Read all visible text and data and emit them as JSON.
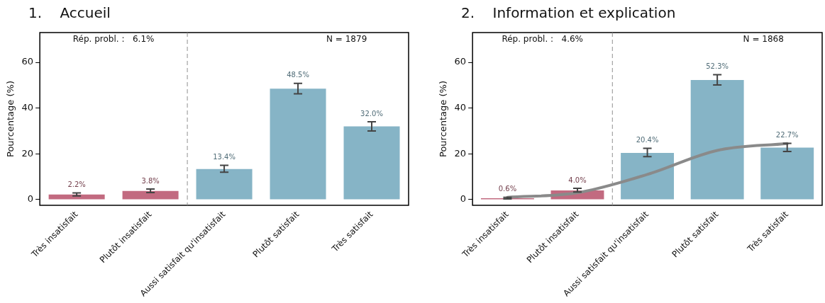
{
  "chart_data": [
    {
      "type": "bar",
      "title": "1.    Accueil",
      "ylabel": "Pourcentage (%)",
      "categories": [
        "Très insatisfait",
        "Plutôt insatisfait",
        "Aussi satisfait qu'insatisfait",
        "Plutôt satisfait",
        "Très satisfait"
      ],
      "series": [
        {
          "colors": [
            "#c26a80",
            "#c26a80",
            "#86b4c6",
            "#86b4c6",
            "#86b4c6"
          ],
          "values": [
            2.2,
            3.8,
            13.4,
            48.5,
            32.0
          ],
          "errors": [
            [
              1.6,
              2.9
            ],
            [
              3.1,
              4.6
            ],
            [
              12,
              15
            ],
            [
              46.2,
              50.8
            ],
            [
              30,
              34
            ]
          ],
          "value_labels": [
            "2.2%",
            "3.8%",
            "13.4%",
            "48.5%",
            "32.0%"
          ]
        }
      ],
      "ylim": [
        -2.5,
        73
      ],
      "yticks": [
        0,
        20,
        40,
        60
      ],
      "grid": false,
      "legend": false,
      "annotations": [
        "Rép. probl. :   6.1%",
        "N = 1879"
      ]
    },
    {
      "type": "bar",
      "title": "2.    Information et explication",
      "ylabel": "Pourcentage (%)",
      "categories": [
        "Très insatisfait",
        "Plutôt insatisfait",
        "Aussi satisfait qu'insatisfait",
        "Plutôt satisfait",
        "Très satisfait"
      ],
      "series": [
        {
          "colors": [
            "#c26a80",
            "#c26a80",
            "#86b4c6",
            "#86b4c6",
            "#86b4c6"
          ],
          "values": [
            0.6,
            4.0,
            20.4,
            52.3,
            22.7
          ],
          "errors": [
            [
              0.3,
              1.0
            ],
            [
              3.3,
              4.9
            ],
            [
              18.8,
              22.4
            ],
            [
              50.1,
              54.6
            ],
            [
              21,
              24.6
            ]
          ],
          "value_labels": [
            "0.6%",
            "4.0%",
            "20.4%",
            "52.3%",
            "22.7%"
          ]
        },
        {
          "type": "line",
          "color": "#8a8a8a",
          "values": [
            1,
            3,
            11,
            21.5,
            24.5
          ],
          "marker": "none"
        }
      ],
      "ylim": [
        -2.5,
        73
      ],
      "yticks": [
        0,
        20,
        40,
        60
      ],
      "grid": false,
      "legend": false,
      "annotations": [
        "Rép. probl. :   4.6%",
        "N = 1868"
      ]
    }
  ]
}
